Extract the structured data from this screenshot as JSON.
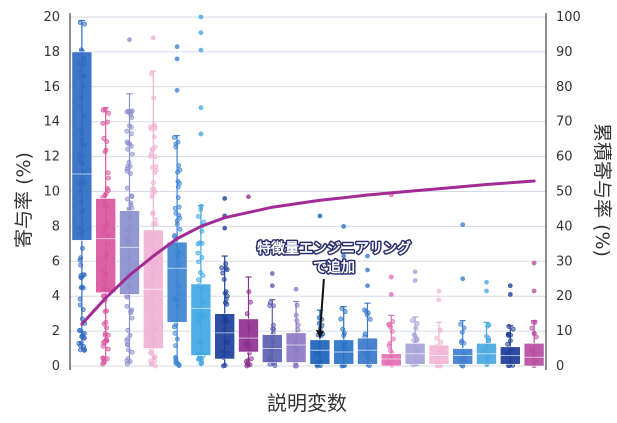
{
  "chart_data": {
    "type": "box",
    "xlabel": "説明変数",
    "ylabel": "寄与率 (%)",
    "y2label": "累積寄与率 (%)",
    "ylim": [
      0,
      20
    ],
    "y2lim": [
      0,
      100
    ],
    "y_ticks": [
      "0",
      "2",
      "4",
      "6",
      "8",
      "10",
      "12",
      "14",
      "16",
      "18",
      "20"
    ],
    "y2_ticks": [
      "0",
      "10",
      "20",
      "30",
      "40",
      "50",
      "60",
      "70",
      "80",
      "90",
      "100"
    ],
    "grid": true,
    "annotation": {
      "text_line1": "特徴量エンジニアリング",
      "text_line2": "で追加",
      "points_to_box": 10
    },
    "boxes": [
      {
        "q1": 7.2,
        "median": 11.0,
        "q3": 18.0,
        "wlo": 0.9,
        "whi": 19.8,
        "color": "#2f6bc3"
      },
      {
        "q1": 4.2,
        "median": 7.3,
        "q3": 9.6,
        "wlo": 0.1,
        "whi": 14.8,
        "color": "#d9549e"
      },
      {
        "q1": 4.1,
        "median": 6.8,
        "q3": 8.9,
        "wlo": 0.1,
        "whi": 15.6,
        "color": "#8b8fcc"
      },
      {
        "q1": 1.0,
        "median": 4.4,
        "q3": 7.8,
        "wlo": 0.0,
        "whi": 16.9,
        "color": "#f0b2d4"
      },
      {
        "q1": 2.5,
        "median": 5.6,
        "q3": 7.1,
        "wlo": 0.0,
        "whi": 13.2,
        "color": "#3c84d3"
      },
      {
        "q1": 0.6,
        "median": 3.3,
        "q3": 4.7,
        "wlo": 0.0,
        "whi": 9.2,
        "color": "#41a7e4"
      },
      {
        "q1": 0.4,
        "median": 1.9,
        "q3": 3.0,
        "wlo": 0.0,
        "whi": 6.3,
        "color": "#1e3f9a"
      },
      {
        "q1": 0.8,
        "median": 1.6,
        "q3": 2.7,
        "wlo": 0.0,
        "whi": 5.1,
        "color": "#8e3190"
      },
      {
        "q1": 0.2,
        "median": 1.0,
        "q3": 1.8,
        "wlo": 0.0,
        "whi": 3.8,
        "color": "#5c5fb0"
      },
      {
        "q1": 0.2,
        "median": 1.2,
        "q3": 1.9,
        "wlo": 0.0,
        "whi": 3.7,
        "color": "#8c7bc3"
      },
      {
        "q1": 0.1,
        "median": 0.9,
        "q3": 1.5,
        "wlo": 0.0,
        "whi": 3.2,
        "color": "#1c62b8"
      },
      {
        "q1": 0.1,
        "median": 0.8,
        "q3": 1.5,
        "wlo": 0.0,
        "whi": 3.4,
        "color": "#2a73c8"
      },
      {
        "q1": 0.1,
        "median": 0.9,
        "q3": 1.6,
        "wlo": 0.0,
        "whi": 3.6,
        "color": "#3a78cc"
      },
      {
        "q1": 0.0,
        "median": 0.4,
        "q3": 0.7,
        "wlo": 0.0,
        "whi": 2.9,
        "color": "#e36eb3"
      },
      {
        "q1": 0.1,
        "median": 0.7,
        "q3": 1.3,
        "wlo": 0.0,
        "whi": 2.8,
        "color": "#a7a2d8"
      },
      {
        "q1": 0.1,
        "median": 0.6,
        "q3": 1.2,
        "wlo": 0.0,
        "whi": 2.5,
        "color": "#f2b6d6"
      },
      {
        "q1": 0.1,
        "median": 0.6,
        "q3": 1.0,
        "wlo": 0.0,
        "whi": 2.6,
        "color": "#3f7ed0"
      },
      {
        "q1": 0.1,
        "median": 0.7,
        "q3": 1.3,
        "wlo": 0.0,
        "whi": 2.5,
        "color": "#4aa8e2"
      },
      {
        "q1": 0.1,
        "median": 0.6,
        "q3": 1.1,
        "wlo": 0.0,
        "whi": 2.3,
        "color": "#1d3c98"
      },
      {
        "q1": 0.0,
        "median": 0.5,
        "q3": 1.3,
        "wlo": 0.0,
        "whi": 2.6,
        "color": "#b94ea3"
      }
    ],
    "outliers": [
      [],
      [],
      [
        18.7
      ],
      [
        18.8
      ],
      [
        15.8,
        17.6,
        18.3
      ],
      [
        13.3,
        14.8,
        18.1,
        19.1,
        20.0
      ],
      [
        9.6,
        8.6,
        7.9
      ],
      [
        9.7
      ],
      [
        5.3,
        4.6
      ],
      [
        4.4
      ],
      [
        8.6
      ],
      [
        8.0,
        6.3,
        5.5
      ],
      [
        6.3,
        5.5,
        4.6
      ],
      [
        9.8,
        5.1,
        4.1
      ],
      [
        5.4,
        4.9
      ],
      [
        4.3,
        3.8
      ],
      [
        8.1,
        5.0
      ],
      [
        4.8,
        4.3
      ],
      [
        4.6,
        4.1
      ],
      [
        5.9,
        4.3
      ]
    ],
    "cumulative": {
      "name": "累積寄与率",
      "color": "#a32b96",
      "values": [
        12.0,
        19.5,
        26.0,
        31.5,
        36.5,
        40.0,
        42.5,
        44.0,
        45.5,
        46.5,
        47.5,
        48.2,
        49.0,
        49.6,
        50.2,
        50.8,
        51.4,
        52.0,
        52.5,
        53.0
      ]
    }
  }
}
